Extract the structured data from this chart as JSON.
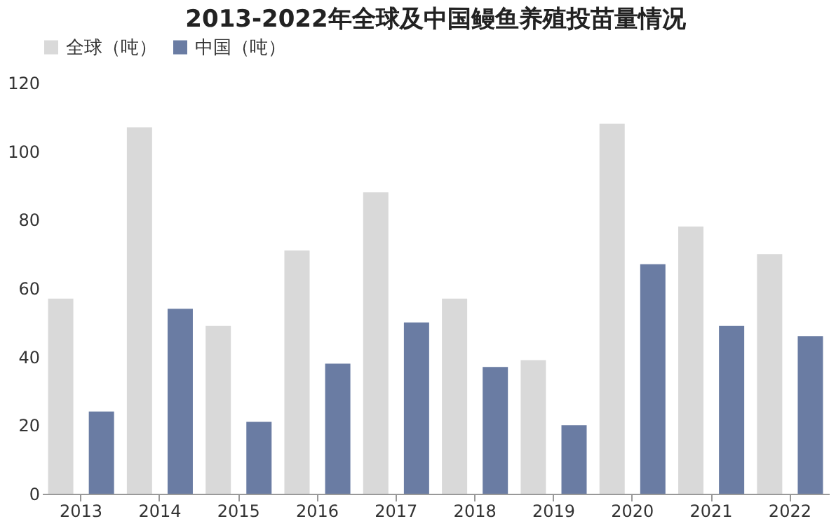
{
  "chart_data": {
    "type": "bar",
    "title": "2013-2022年全球及中国鳗鱼养殖投苗量情况",
    "categories": [
      "2013",
      "2014",
      "2015",
      "2016",
      "2017",
      "2018",
      "2019",
      "2020",
      "2021",
      "2022"
    ],
    "series": [
      {
        "name": "全球（吨）",
        "color": "#d9d9d9",
        "values": [
          57,
          107,
          49,
          71,
          88,
          57,
          39,
          108,
          78,
          70
        ]
      },
      {
        "name": "中国（吨）",
        "color": "#6a7ca3",
        "values": [
          24,
          54,
          21,
          38,
          50,
          37,
          20,
          67,
          49,
          46
        ]
      }
    ],
    "ylim": [
      0,
      120
    ],
    "yticks": [
      0,
      20,
      40,
      60,
      80,
      100,
      120
    ],
    "grid": false,
    "legend": "top"
  }
}
